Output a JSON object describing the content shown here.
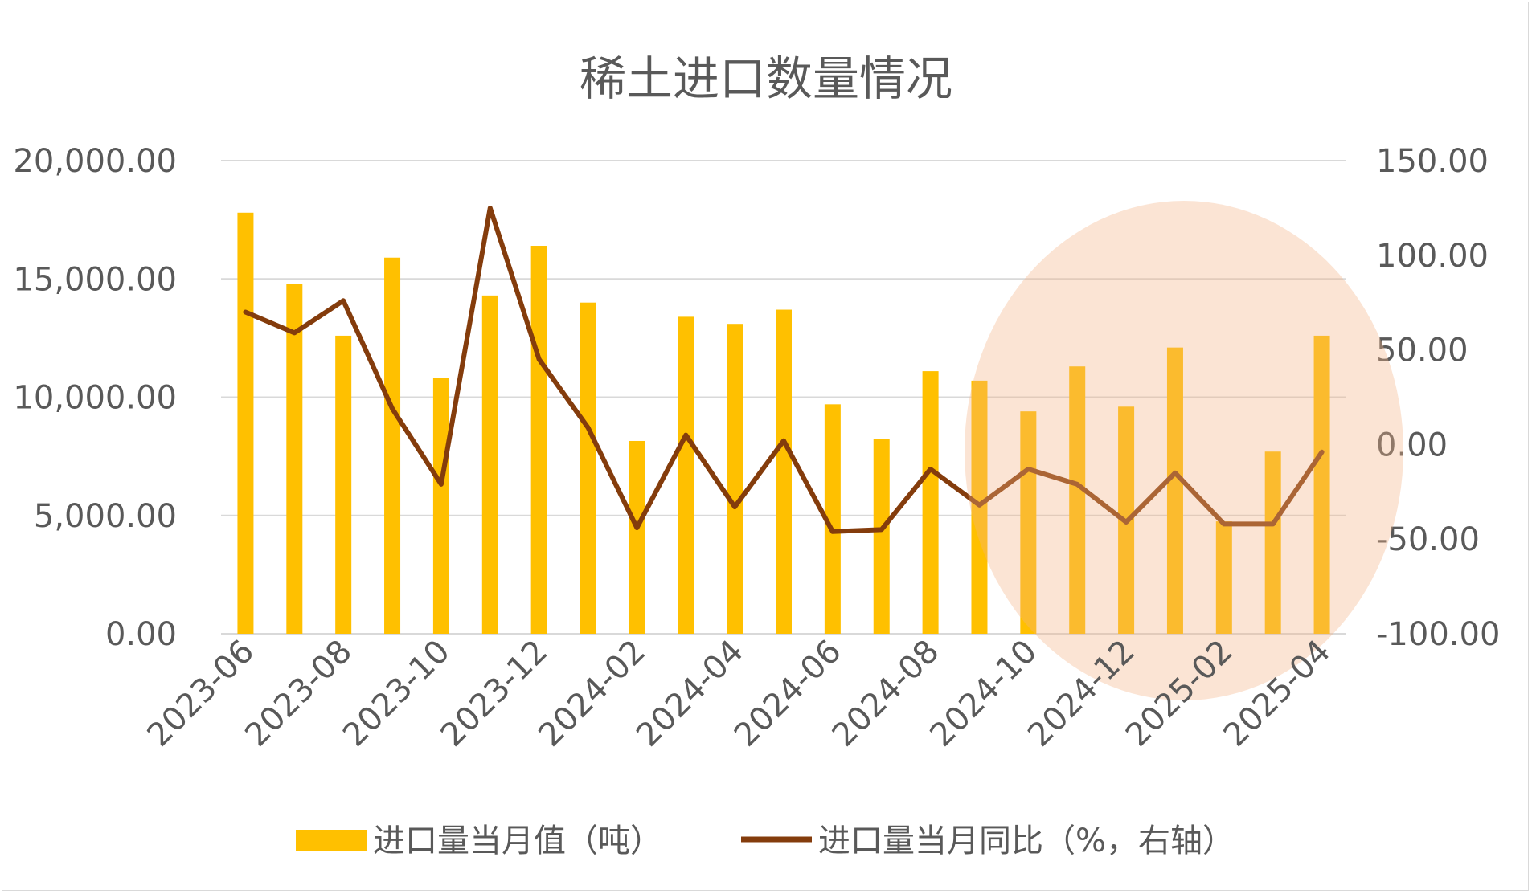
{
  "chart_data": {
    "type": "bar",
    "title": "稀土进口数量情况",
    "x": [
      "2023-06",
      "2023-07",
      "2023-08",
      "2023-09",
      "2023-10",
      "2023-11",
      "2023-12",
      "2024-01",
      "2024-02",
      "2024-03",
      "2024-04",
      "2024-05",
      "2024-06",
      "2024-07",
      "2024-08",
      "2024-09",
      "2024-10",
      "2024-11",
      "2024-12",
      "2025-01",
      "2025-02",
      "2025-03",
      "2025-04"
    ],
    "x_tick_labels": [
      "2023-06",
      "2023-08",
      "2023-10",
      "2023-12",
      "2024-02",
      "2024-04",
      "2024-06",
      "2024-08",
      "2024-10",
      "2024-12",
      "2025-02",
      "2025-04"
    ],
    "y_left": {
      "ylim": [
        0,
        20000
      ],
      "tick_labels": [
        "0.00",
        "5,000.00",
        "10,000.00",
        "15,000.00",
        "20,000.00"
      ]
    },
    "y_right": {
      "ylim": [
        -100,
        150
      ],
      "tick_labels": [
        "-100.00",
        "-50.00",
        "0.00",
        "50.00",
        "100.00",
        "150.00"
      ]
    },
    "grid": true,
    "legend_position": "bottom",
    "series": [
      {
        "name": "进口量当月值（吨）",
        "type": "bar",
        "axis": "left",
        "color": "#FFC000",
        "values": [
          17800,
          14800,
          12600,
          15900,
          10800,
          14300,
          16400,
          14000,
          8150,
          13400,
          13100,
          13700,
          9700,
          8250,
          11100,
          10700,
          9400,
          11300,
          9600,
          12100,
          4750,
          7700,
          12600
        ]
      },
      {
        "name": "进口量当月同比（%，右轴）",
        "type": "line",
        "axis": "right",
        "color": "#843C0C",
        "values": [
          70,
          59,
          76,
          19,
          -21,
          125,
          45,
          9,
          -44,
          5,
          -33,
          2,
          -46,
          -45,
          -13,
          -32,
          -13,
          -21,
          -41,
          -15,
          -42,
          -42,
          -4
        ]
      }
    ],
    "annotations": [
      {
        "type": "ellipse",
        "color": "#F4B183",
        "opacity": 0.35,
        "highlights": "2024-10 to 2025-04"
      }
    ]
  }
}
